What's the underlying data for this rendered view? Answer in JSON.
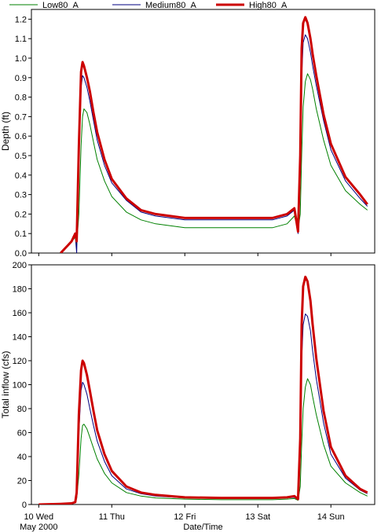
{
  "chart_data": [
    {
      "type": "line",
      "ylabel": "Depth (ft)",
      "ylim": [
        0,
        1.25
      ],
      "yticks": [
        0,
        0.1,
        0.2,
        0.3,
        0.4,
        0.5,
        0.6,
        0.7,
        0.8,
        0.9,
        1.0,
        1.1,
        1.2
      ],
      "ytick_labels": [
        "0.0",
        "0.1",
        "0.2",
        "0.3",
        "0.4",
        "0.5",
        "0.6",
        "0.7",
        "0.8",
        "0.9",
        "1.0",
        "1.1",
        "1.2"
      ],
      "grid": false,
      "series": [
        {
          "name": "Low80_A",
          "color": "#008000",
          "x": [
            0.3,
            0.4,
            0.45,
            0.5,
            0.52,
            0.55,
            0.58,
            0.6,
            0.62,
            0.66,
            0.7,
            0.75,
            0.8,
            0.9,
            1.0,
            1.2,
            1.4,
            1.6,
            2.0,
            2.5,
            3.0,
            3.2,
            3.4,
            3.5,
            3.55,
            3.58,
            3.6,
            3.62,
            3.65,
            3.68,
            3.72,
            3.75,
            3.8,
            3.9,
            4.0,
            4.2,
            4.4,
            4.5
          ],
          "y": [
            0.0,
            0.04,
            0.06,
            0.08,
            0.04,
            0.2,
            0.55,
            0.7,
            0.74,
            0.72,
            0.66,
            0.57,
            0.48,
            0.37,
            0.29,
            0.21,
            0.17,
            0.15,
            0.13,
            0.13,
            0.13,
            0.13,
            0.15,
            0.19,
            0.12,
            0.2,
            0.5,
            0.75,
            0.88,
            0.92,
            0.89,
            0.84,
            0.74,
            0.58,
            0.45,
            0.32,
            0.25,
            0.22
          ]
        },
        {
          "name": "Medium80_A",
          "color": "#000080",
          "x": [
            0.3,
            0.4,
            0.45,
            0.5,
            0.52,
            0.55,
            0.58,
            0.6,
            0.62,
            0.66,
            0.7,
            0.75,
            0.8,
            0.9,
            1.0,
            1.2,
            1.4,
            1.6,
            2.0,
            2.5,
            3.0,
            3.2,
            3.4,
            3.5,
            3.55,
            3.58,
            3.6,
            3.62,
            3.65,
            3.68,
            3.72,
            3.75,
            3.8,
            3.9,
            4.0,
            4.2,
            4.4,
            4.5
          ],
          "y": [
            0.0,
            0.04,
            0.06,
            0.09,
            0.0,
            0.45,
            0.85,
            0.91,
            0.9,
            0.85,
            0.78,
            0.68,
            0.58,
            0.45,
            0.36,
            0.27,
            0.21,
            0.19,
            0.17,
            0.17,
            0.17,
            0.17,
            0.19,
            0.22,
            0.1,
            0.4,
            0.9,
            1.08,
            1.12,
            1.1,
            1.03,
            0.96,
            0.86,
            0.68,
            0.53,
            0.37,
            0.28,
            0.24
          ]
        },
        {
          "name": "High80_A",
          "color": "#cc0000",
          "x": [
            0.3,
            0.4,
            0.45,
            0.5,
            0.52,
            0.55,
            0.58,
            0.6,
            0.62,
            0.66,
            0.7,
            0.75,
            0.8,
            0.9,
            1.0,
            1.2,
            1.4,
            1.6,
            2.0,
            2.5,
            3.0,
            3.2,
            3.4,
            3.5,
            3.55,
            3.58,
            3.6,
            3.62,
            3.65,
            3.68,
            3.72,
            3.75,
            3.8,
            3.9,
            4.0,
            4.2,
            4.4,
            4.5
          ],
          "y": [
            0.0,
            0.04,
            0.06,
            0.1,
            0.06,
            0.55,
            0.93,
            0.98,
            0.96,
            0.9,
            0.83,
            0.72,
            0.62,
            0.48,
            0.38,
            0.28,
            0.22,
            0.2,
            0.18,
            0.18,
            0.18,
            0.18,
            0.2,
            0.23,
            0.11,
            0.5,
            1.05,
            1.18,
            1.21,
            1.18,
            1.1,
            1.02,
            0.91,
            0.71,
            0.56,
            0.39,
            0.3,
            0.25
          ]
        }
      ]
    },
    {
      "type": "line",
      "ylabel": "Total inflow (cfs)",
      "xlabel": "Date/Time",
      "ylim": [
        0,
        200
      ],
      "yticks": [
        0,
        20,
        40,
        60,
        80,
        100,
        120,
        140,
        160,
        180,
        200
      ],
      "ytick_labels": [
        "0",
        "20",
        "40",
        "60",
        "80",
        "100",
        "120",
        "140",
        "160",
        "180",
        "200"
      ],
      "grid": false,
      "xticks": [
        0,
        1,
        2,
        3,
        4
      ],
      "xtick_labels": [
        "10 Wed",
        "11 Thu",
        "12 Fri",
        "13 Sat",
        "14 Sun"
      ],
      "x_sublabel": "May 2000",
      "series": [
        {
          "name": "Low80_A",
          "color": "#008000",
          "x": [
            0.0,
            0.3,
            0.45,
            0.5,
            0.52,
            0.55,
            0.58,
            0.6,
            0.62,
            0.66,
            0.7,
            0.75,
            0.8,
            0.9,
            1.0,
            1.2,
            1.4,
            1.6,
            2.0,
            2.5,
            3.0,
            3.2,
            3.4,
            3.5,
            3.55,
            3.58,
            3.6,
            3.62,
            3.65,
            3.68,
            3.72,
            3.75,
            3.8,
            3.9,
            4.0,
            4.2,
            4.4,
            4.5
          ],
          "y": [
            0.0,
            0.5,
            1.0,
            2.0,
            5.0,
            25.0,
            55.0,
            66.0,
            67.0,
            63.0,
            56.0,
            47.0,
            38.0,
            26.0,
            18.0,
            10.0,
            7.0,
            5.5,
            4.5,
            4.0,
            4.0,
            4.0,
            4.5,
            5.0,
            3.5,
            15.0,
            50.0,
            80.0,
            98.0,
            105.0,
            100.0,
            90.0,
            75.0,
            50.0,
            32.0,
            18.0,
            10.0,
            7.0
          ]
        },
        {
          "name": "Medium80_A",
          "color": "#000080",
          "x": [
            0.0,
            0.3,
            0.45,
            0.5,
            0.52,
            0.55,
            0.58,
            0.6,
            0.62,
            0.66,
            0.7,
            0.75,
            0.8,
            0.9,
            1.0,
            1.2,
            1.4,
            1.6,
            2.0,
            2.5,
            3.0,
            3.2,
            3.4,
            3.5,
            3.55,
            3.58,
            3.6,
            3.62,
            3.65,
            3.68,
            3.72,
            3.75,
            3.8,
            3.9,
            4.0,
            4.2,
            4.4,
            4.5
          ],
          "y": [
            0.0,
            0.5,
            1.0,
            2.0,
            8.0,
            60.0,
            95.0,
            102.0,
            100.0,
            92.0,
            80.0,
            66.0,
            53.0,
            36.0,
            24.0,
            13.0,
            9.0,
            7.0,
            5.5,
            5.0,
            5.0,
            5.0,
            5.5,
            6.0,
            4.0,
            40.0,
            120.0,
            150.0,
            159.0,
            157.0,
            145.0,
            128.0,
            105.0,
            68.0,
            42.0,
            22.0,
            12.0,
            9.0
          ]
        },
        {
          "name": "High80_A",
          "color": "#cc0000",
          "x": [
            0.0,
            0.3,
            0.45,
            0.5,
            0.52,
            0.55,
            0.58,
            0.6,
            0.62,
            0.66,
            0.7,
            0.75,
            0.8,
            0.9,
            1.0,
            1.2,
            1.4,
            1.6,
            2.0,
            2.5,
            3.0,
            3.2,
            3.4,
            3.5,
            3.55,
            3.58,
            3.6,
            3.62,
            3.65,
            3.68,
            3.72,
            3.75,
            3.8,
            3.9,
            4.0,
            4.2,
            4.4,
            4.5
          ],
          "y": [
            0.0,
            0.5,
            1.0,
            2.0,
            10.0,
            75.0,
            112.0,
            120.0,
            118.0,
            108.0,
            95.0,
            78.0,
            62.0,
            42.0,
            28.0,
            15.0,
            10.0,
            8.0,
            6.0,
            5.5,
            5.5,
            5.5,
            6.0,
            7.0,
            4.5,
            55.0,
            150.0,
            182.0,
            190.0,
            186.0,
            170.0,
            150.0,
            122.0,
            78.0,
            48.0,
            24.0,
            13.0,
            10.0
          ]
        }
      ]
    }
  ]
}
